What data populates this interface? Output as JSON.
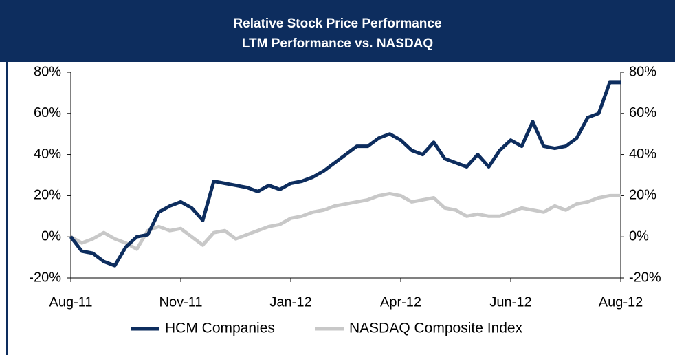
{
  "chart_data": {
    "type": "line",
    "title": "Relative Stock Price Performance",
    "subtitle": "LTM Performance vs. NASDAQ",
    "categories": [
      "Aug-11",
      null,
      null,
      null,
      null,
      null,
      null,
      null,
      null,
      null,
      "Nov-11",
      null,
      null,
      null,
      null,
      null,
      null,
      null,
      null,
      null,
      "Jan-12",
      null,
      null,
      null,
      null,
      null,
      null,
      null,
      null,
      null,
      "Apr-12",
      null,
      null,
      null,
      null,
      null,
      null,
      null,
      null,
      null,
      "Jun-12",
      null,
      null,
      null,
      null,
      null,
      null,
      null,
      null,
      null,
      "Aug-12"
    ],
    "series": [
      {
        "name": "HCM Companies",
        "color": "#0d2d5e",
        "values": [
          0,
          -7,
          -8,
          -12,
          -14,
          -5,
          0,
          1,
          12,
          15,
          17,
          14,
          8,
          27,
          26,
          25,
          24,
          22,
          25,
          23,
          26,
          27,
          29,
          32,
          36,
          40,
          44,
          44,
          48,
          50,
          47,
          42,
          40,
          46,
          38,
          36,
          34,
          40,
          34,
          42,
          47,
          44,
          56,
          44,
          43,
          44,
          48,
          58,
          60,
          75,
          75
        ]
      },
      {
        "name": "NASDAQ Composite Index",
        "color": "#c8c8c8",
        "values": [
          0,
          -3,
          -1,
          2,
          -1,
          -3,
          -6,
          3,
          5,
          3,
          4,
          0,
          -4,
          2,
          3,
          -1,
          1,
          3,
          5,
          6,
          9,
          10,
          12,
          13,
          15,
          16,
          17,
          18,
          20,
          21,
          20,
          17,
          18,
          19,
          14,
          13,
          10,
          11,
          10,
          10,
          12,
          14,
          13,
          12,
          15,
          13,
          16,
          17,
          19,
          20,
          20
        ]
      }
    ],
    "ylim": [
      -20,
      80
    ],
    "yticks": [
      {
        "value": -20,
        "label": "-20%"
      },
      {
        "value": 0,
        "label": "0%"
      },
      {
        "value": 20,
        "label": "20%"
      },
      {
        "value": 40,
        "label": "40%"
      },
      {
        "value": 60,
        "label": "60%"
      },
      {
        "value": 80,
        "label": "80%"
      }
    ],
    "y2lim": [
      -20,
      80
    ],
    "y2ticks": [
      {
        "value": -20,
        "label": "-20%"
      },
      {
        "value": 0,
        "label": "0%"
      },
      {
        "value": 20,
        "label": "20%"
      },
      {
        "value": 40,
        "label": "40%"
      },
      {
        "value": 60,
        "label": "60%"
      },
      {
        "value": 80,
        "label": "80%"
      }
    ],
    "grid": false,
    "legend": "bottom"
  }
}
